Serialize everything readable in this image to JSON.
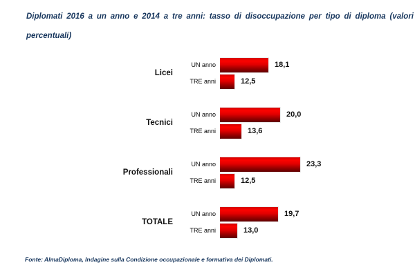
{
  "title": {
    "line1": "Diplomati 2016 a un anno e 2014 a tre anni: tasso di disoccupazione per tipo di diploma (valori",
    "line2": "percentuali)"
  },
  "footer": {
    "text": "Fonte: AlmaDiploma, Indagine sulla Condizione occupazionale e formativa dei Diplomati."
  },
  "colors": {
    "title_text": "#17365d",
    "chart_text": "#111111",
    "bar_gradient_top": "#d20000",
    "bar_gradient_bright": "#fb0300",
    "bar_gradient_bottom": "#5e0000"
  },
  "chart_data": {
    "type": "bar",
    "orientation": "horizontal",
    "title": "Diplomati 2016 a un anno e 2014 a tre anni: tasso di disoccupazione per tipo di diploma (valori percentuali)",
    "categories": [
      "Licei",
      "Tecnici",
      "Professionali",
      "TOTALE"
    ],
    "series": [
      {
        "name": "UN anno",
        "values": [
          18.1,
          20.0,
          23.3,
          19.7
        ]
      },
      {
        "name": "TRE anni",
        "values": [
          12.5,
          13.6,
          12.5,
          13.0
        ]
      }
    ],
    "value_labels": [
      [
        "18,1",
        "20,0",
        "23,3",
        "19,7"
      ],
      [
        "12,5",
        "13,6",
        "12,5",
        "13,0"
      ]
    ],
    "xlabel": "",
    "ylabel": "",
    "xlim": [
      10,
      25
    ],
    "grid": false,
    "legend": "none",
    "bar_label_position": "outside-end"
  }
}
